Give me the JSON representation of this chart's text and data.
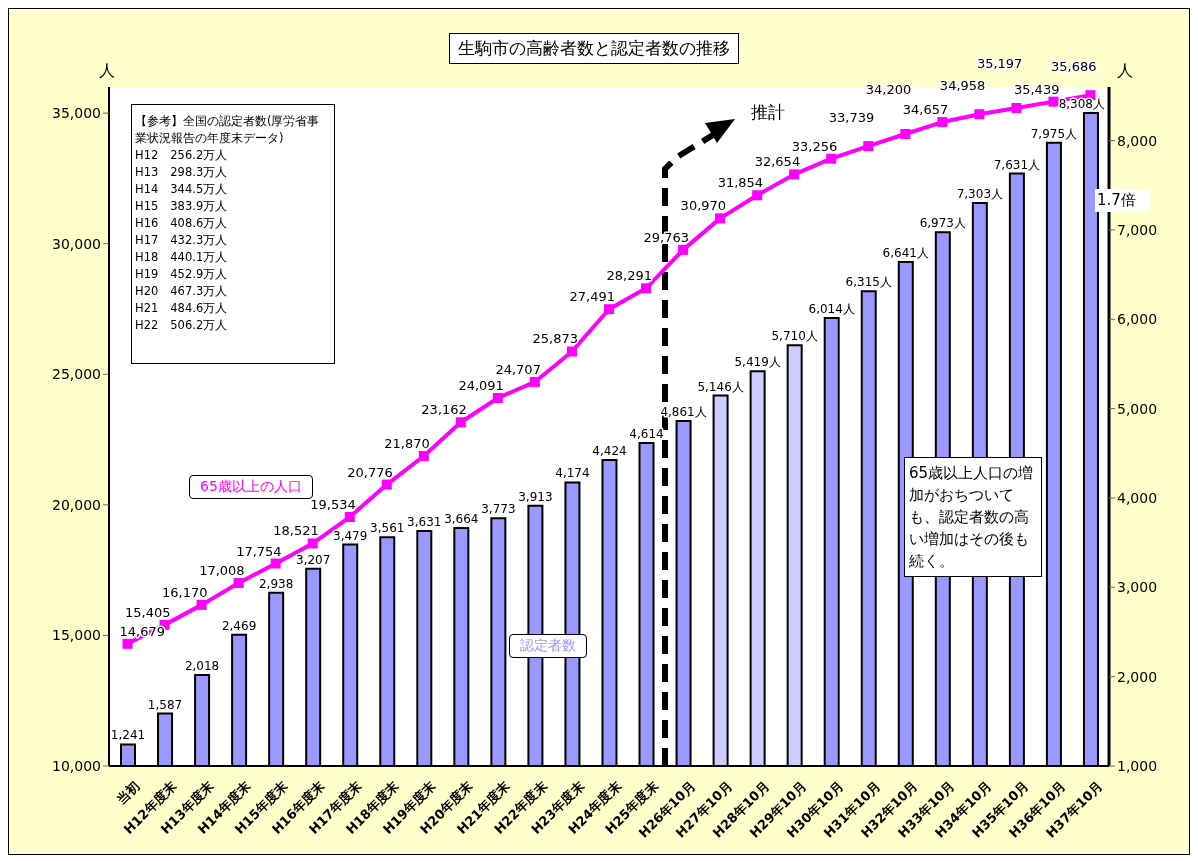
{
  "chart_data": {
    "type": "bar",
    "title": "生駒市の高齢者数と認定者数の推移",
    "ylabel": "人",
    "y2label": "人",
    "categories": [
      "当初",
      "H12年度末",
      "H13年度末",
      "H14年度末",
      "H15年度末",
      "H16年度末",
      "H17年度末",
      "H18年度末",
      "H19年度末",
      "H20年度末",
      "H21年度末",
      "H22年度末",
      "H23年度末",
      "H24年度末",
      "H25年度末",
      "H26年10月",
      "H27年10月",
      "H28年10月",
      "H29年10月",
      "H30年10月",
      "H31年10月",
      "H32年10月",
      "H33年10月",
      "H34年10月",
      "H35年10月",
      "H36年10月",
      "H37年10月"
    ],
    "series": [
      {
        "name": "65歳以上の人口",
        "type": "line",
        "color": "#ff00ff",
        "marker": "square",
        "values": [
          14679,
          15405,
          16170,
          17008,
          17754,
          18521,
          19534,
          20776,
          21870,
          23162,
          24091,
          24707,
          25873,
          27491,
          28291,
          29763,
          30970,
          31854,
          32654,
          33256,
          33739,
          34200,
          34657,
          34958,
          35197,
          35439,
          35686
        ],
        "value_labels": [
          "14,679",
          "15,405",
          "16,170",
          "17,008",
          "17,754",
          "18,521",
          "19,534",
          "20,776",
          "21,870",
          "23,162",
          "24,091",
          "24,707",
          "25,873",
          "27,491",
          "28,291",
          "29,763",
          "30,970",
          "31,854",
          "32,654",
          "33,256",
          "33,739",
          "34,200",
          "34,657",
          "34,958",
          "35,197",
          "35,439",
          "35,686"
        ]
      },
      {
        "name": "認定者数",
        "axis": "y2",
        "color": "#9999ff",
        "colors": [
          "#9999ff",
          "#9999ff",
          "#9999ff",
          "#9999ff",
          "#9999ff",
          "#9999ff",
          "#9999ff",
          "#9999ff",
          "#9999ff",
          "#9999ff",
          "#9999ff",
          "#9999ff",
          "#9999ff",
          "#9999ff",
          "#9999ff",
          "#9999ff",
          "#ccccff",
          "#ccccff",
          "#ccccff",
          "#9999ff",
          "#9999ff",
          "#9999ff",
          "#9999ff",
          "#9999ff",
          "#9999ff",
          "#9999ff",
          "#9999ff"
        ],
        "values": [
          1241,
          1587,
          2018,
          2469,
          2938,
          3207,
          3479,
          3561,
          3631,
          3664,
          3773,
          3913,
          4174,
          4424,
          4614,
          4861,
          5146,
          5419,
          5710,
          6014,
          6315,
          6641,
          6973,
          7303,
          7631,
          7975,
          8308
        ],
        "value_labels": [
          "1,241",
          "1,587",
          "2,018",
          "2,469",
          "2,938",
          "3,207",
          "3,479",
          "3,561",
          "3,631",
          "3,664",
          "3,773",
          "3,913",
          "4,174",
          "4,424",
          "4,614",
          "4,861人",
          "5,146人",
          "5,419人",
          "5,710人",
          "6,014人",
          "6,315人",
          "6,641人",
          "6,973人",
          "7,303人",
          "7,631人",
          "7,975人",
          "8,308人"
        ]
      }
    ],
    "ylim": [
      10000,
      36000
    ],
    "yticks": [
      {
        "value": 10000,
        "label": "10,000"
      },
      {
        "value": 15000,
        "label": "15,000"
      },
      {
        "value": 20000,
        "label": "20,000"
      },
      {
        "value": 25000,
        "label": "25,000"
      },
      {
        "value": 30000,
        "label": "30,000"
      },
      {
        "value": 35000,
        "label": "35,000"
      }
    ],
    "y2lim": [
      1000,
      8600
    ],
    "y2ticks": [
      {
        "value": 1000,
        "label": "1,000"
      },
      {
        "value": 2000,
        "label": "2,000"
      },
      {
        "value": 3000,
        "label": "3,000"
      },
      {
        "value": 4000,
        "label": "4,000"
      },
      {
        "value": 5000,
        "label": "5,000"
      },
      {
        "value": 6000,
        "label": "6,000"
      },
      {
        "value": 7000,
        "label": "7,000"
      },
      {
        "value": 8000,
        "label": "8,000"
      }
    ],
    "legend": false,
    "annotations": [
      "【参考】全国の認定者数(厚労省事業状況報告の年度末データ)\nH12　256.2万人\nH13　298.3万人\nH14　344.5万人\nH15　383.9万人\nH16　408.6万人\nH17　432.3万人\nH18　440.1万人\nH19　452.9万人\nH20　467.3万人\nH21　484.6万人\nH22　506.2万人",
      "推計",
      "1.7倍",
      "65歳以上人口の増加がおちついても、認定者数の高い増加はその後も続く。"
    ]
  }
}
